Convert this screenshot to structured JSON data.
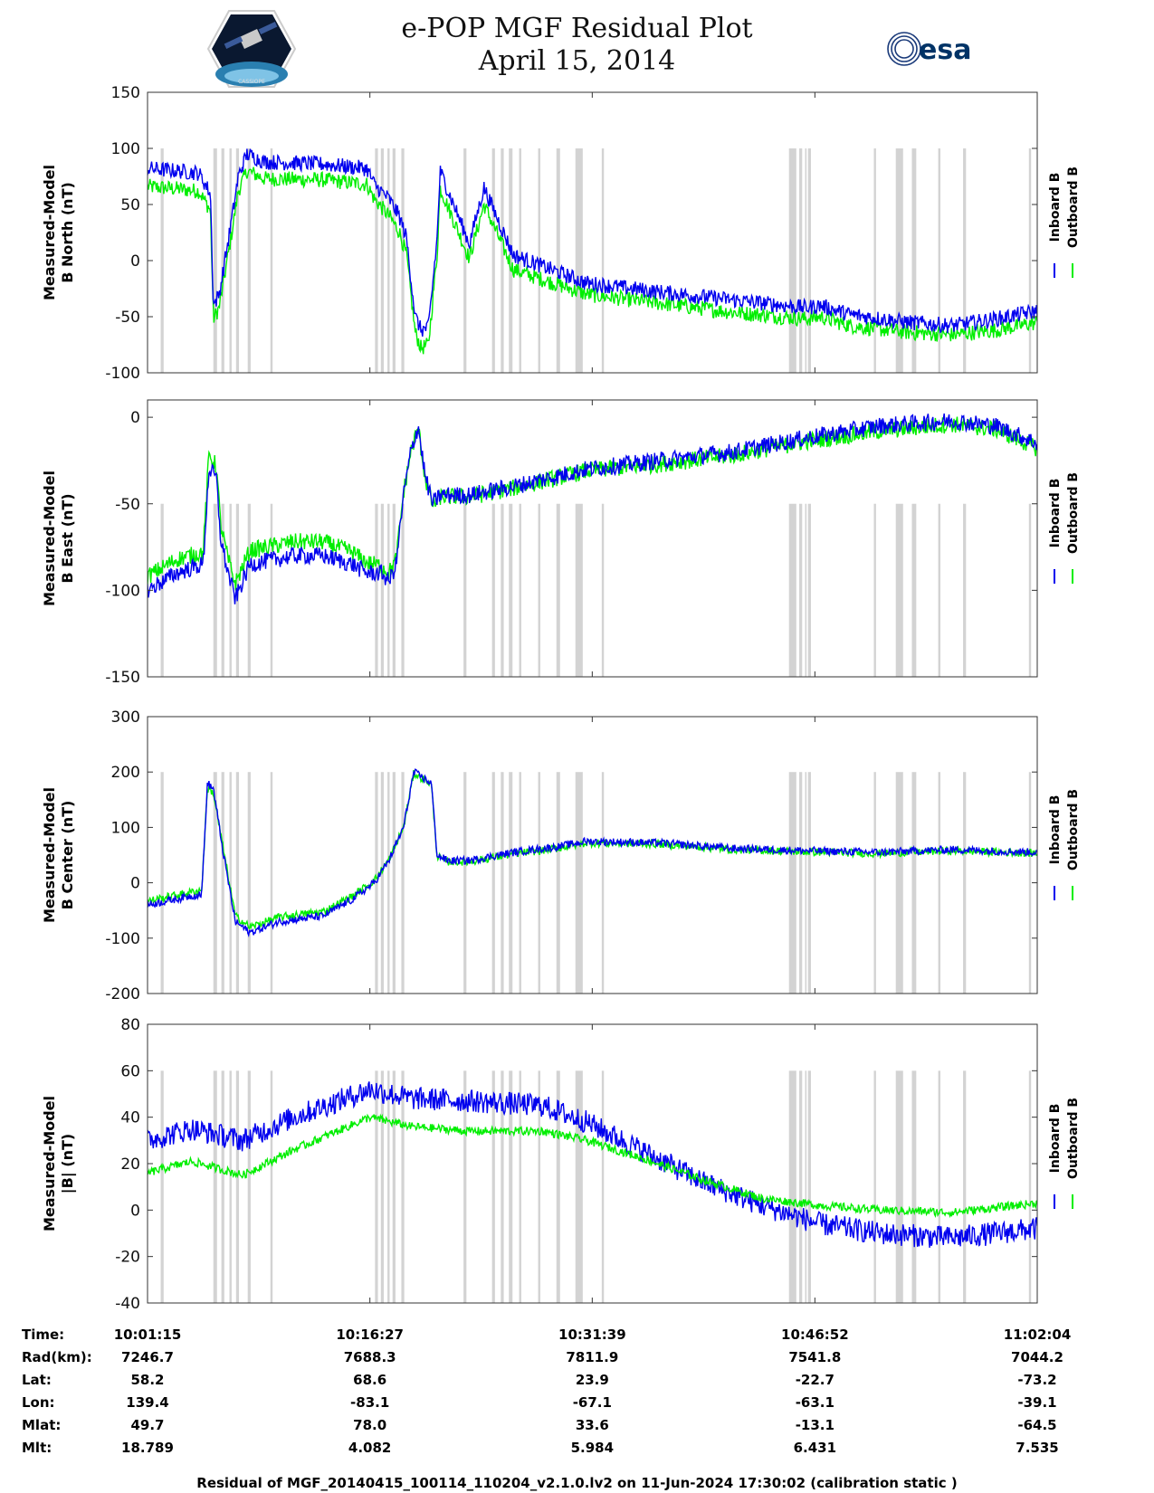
{
  "header": {
    "title_line1": "e-POP MGF Residual Plot",
    "title_line2": "April 15, 2014",
    "logo_left": "CASSIOPE",
    "logo_right": "esa"
  },
  "colors": {
    "inboard": "#0000ee",
    "outboard": "#00ee00",
    "gap_band": "#d3d3d3"
  },
  "chart_data": [
    {
      "type": "line",
      "ylabel_line1": "Measured-Model",
      "ylabel_line2": "B North (nT)",
      "ylim": [
        -100,
        150
      ],
      "yticks": [
        150,
        100,
        50,
        0,
        -50,
        -100
      ],
      "x_unit": "minutes after 10:01:15",
      "xlim": [
        0,
        60.82
      ],
      "legend": [
        "Inboard B",
        "Outboard B"
      ],
      "series": [
        {
          "name": "Inboard B",
          "noise": 7,
          "x": [
            0,
            2,
            3.5,
            4.3,
            4.5,
            4.9,
            5.8,
            6.2,
            6.8,
            8,
            12,
            15,
            20,
            23,
            15.5,
            16.5,
            17.2,
            17.7,
            18.3,
            18.7,
            19.2,
            19.8,
            22,
            25,
            30,
            35,
            40,
            45,
            46,
            48,
            52,
            55,
            58,
            60.82
          ],
          "y": [
            82,
            80,
            78,
            60,
            -40,
            -30,
            40,
            75,
            95,
            88,
            86,
            82,
            80,
            65,
            68,
            55,
            40,
            20,
            -50,
            -62,
            -60,
            20,
            15,
            5,
            -20,
            -28,
            -35,
            -42,
            -40,
            -48,
            -55,
            -58,
            -52,
            -45
          ]
        },
        {
          "name": "Outboard B",
          "noise": 7,
          "x": [
            0,
            2,
            3.5,
            4.3,
            4.5,
            4.9,
            5.8,
            6.2,
            6.8,
            8,
            12,
            15,
            20,
            23,
            15.5,
            16.5,
            17.2,
            17.7,
            18.3,
            18.7,
            19.2,
            19.8,
            22,
            25,
            30,
            35,
            40,
            45,
            46,
            48,
            52,
            55,
            58,
            60.82
          ],
          "y": [
            66,
            64,
            62,
            45,
            -52,
            -42,
            28,
            62,
            80,
            73,
            72,
            68,
            65,
            50,
            55,
            40,
            26,
            5,
            -64,
            -78,
            -75,
            6,
            2,
            -8,
            -30,
            -38,
            -46,
            -52,
            -50,
            -58,
            -64,
            -66,
            -62,
            -55
          ]
        }
      ]
    },
    {
      "type": "line",
      "ylabel_line1": "Measured-Model",
      "ylabel_line2": "B East (nT)",
      "ylim": [
        -150,
        10
      ],
      "yticks": [
        0,
        -50,
        -100,
        -150
      ],
      "x_unit": "minutes after 10:01:15",
      "xlim": [
        0,
        60.82
      ],
      "legend": [
        "Inboard B",
        "Outboard B"
      ],
      "series": [
        {
          "name": "Inboard B",
          "noise": 5,
          "x": [
            0,
            2,
            3.8,
            4.2,
            4.7,
            5,
            5.5,
            6,
            7,
            10,
            12,
            14,
            15,
            16,
            16.5,
            17,
            17.5,
            18,
            18.5,
            19,
            19.5,
            20,
            22,
            25,
            30,
            35,
            40,
            45,
            50,
            55,
            58,
            60.82
          ],
          "y": [
            -100,
            -90,
            -85,
            -30,
            -35,
            -70,
            -90,
            -105,
            -85,
            -80,
            -80,
            -85,
            -90,
            -90,
            -95,
            -85,
            -45,
            -20,
            -5,
            -35,
            -50,
            -45,
            -45,
            -40,
            -30,
            -25,
            -20,
            -12,
            -5,
            -2,
            -5,
            -15
          ]
        },
        {
          "name": "Outboard B",
          "noise": 5,
          "x": [
            0,
            2,
            3.8,
            4.2,
            4.7,
            5,
            5.5,
            6,
            7,
            10,
            12,
            14,
            15,
            16,
            16.5,
            17,
            17.5,
            18,
            18.5,
            19,
            19.5,
            20,
            22,
            25,
            30,
            35,
            40,
            45,
            50,
            55,
            58,
            60.82
          ],
          "y": [
            -92,
            -82,
            -78,
            -22,
            -28,
            -62,
            -82,
            -96,
            -77,
            -72,
            -72,
            -78,
            -84,
            -86,
            -90,
            -82,
            -44,
            -20,
            -6,
            -36,
            -51,
            -46,
            -46,
            -41,
            -31,
            -27,
            -22,
            -14,
            -8,
            -4,
            -7,
            -18
          ]
        }
      ]
    },
    {
      "type": "line",
      "ylabel_line1": "Measured-Model",
      "ylabel_line2": "B Center (nT)",
      "ylim": [
        -200,
        300
      ],
      "yticks": [
        300,
        200,
        100,
        0,
        -100,
        -200
      ],
      "x_unit": "minutes after 10:01:15",
      "xlim": [
        0,
        60.82
      ],
      "legend": [
        "Inboard B",
        "Outboard B"
      ],
      "series": [
        {
          "name": "Inboard B",
          "noise": 7,
          "x": [
            0,
            3.7,
            4.1,
            4.5,
            5.2,
            6,
            7,
            9,
            12,
            14,
            15.5,
            16.5,
            17.5,
            18.2,
            18.8,
            19.4,
            19.8,
            20.5,
            22,
            25,
            28,
            30,
            35,
            40,
            45,
            50,
            55,
            60.82
          ],
          "y": [
            -40,
            -20,
            180,
            170,
            50,
            -70,
            -90,
            -70,
            -60,
            -30,
            0,
            40,
            100,
            200,
            190,
            180,
            50,
            40,
            40,
            55,
            65,
            75,
            72,
            62,
            58,
            55,
            60,
            55
          ]
        },
        {
          "name": "Outboard B",
          "noise": 7,
          "x": [
            0,
            3.7,
            4.1,
            4.5,
            5.2,
            6,
            7,
            9,
            12,
            14,
            15.5,
            16.5,
            17.5,
            18.2,
            18.8,
            19.4,
            19.8,
            20.5,
            22,
            25,
            28,
            30,
            35,
            40,
            45,
            50,
            55,
            60.82
          ],
          "y": [
            -33,
            -13,
            172,
            162,
            58,
            -60,
            -80,
            -62,
            -52,
            -24,
            4,
            42,
            100,
            198,
            188,
            178,
            48,
            38,
            38,
            52,
            62,
            72,
            70,
            60,
            56,
            53,
            58,
            53
          ]
        }
      ]
    },
    {
      "type": "line",
      "ylabel_line1": "Measured-Model",
      "ylabel_line2": "|B| (nT)",
      "ylim": [
        -40,
        80
      ],
      "yticks": [
        80,
        60,
        40,
        20,
        0,
        -20,
        -40
      ],
      "x_unit": "minutes after 10:01:15",
      "xlim": [
        0,
        60.82
      ],
      "legend": [
        "Inboard B",
        "Outboard B"
      ],
      "series": [
        {
          "name": "Inboard B",
          "noise": 5,
          "x": [
            0,
            3,
            6.5,
            10,
            15.2,
            18,
            22,
            27,
            30,
            34,
            38,
            42,
            46,
            50,
            55,
            60.82
          ],
          "y": [
            30,
            35,
            30,
            40,
            52,
            48,
            47,
            45,
            38,
            25,
            12,
            2,
            -6,
            -10,
            -12,
            -8
          ]
        },
        {
          "name": "Outboard B",
          "noise": 1.8,
          "x": [
            0,
            3,
            6.5,
            10,
            15.2,
            18,
            22,
            27,
            30,
            34,
            38,
            42,
            46,
            50,
            55,
            60.82
          ],
          "y": [
            16,
            21,
            15,
            26,
            40,
            36,
            34,
            34,
            30,
            22,
            13,
            5,
            2,
            0,
            -1,
            3
          ]
        }
      ]
    }
  ],
  "gap_bands_minutes": [
    [
      0.9,
      1.1
    ],
    [
      4.5,
      4.75
    ],
    [
      5.05,
      5.25
    ],
    [
      5.6,
      5.75
    ],
    [
      6.05,
      6.25
    ],
    [
      6.85,
      7.05
    ],
    [
      8.4,
      8.55
    ],
    [
      15.55,
      15.75
    ],
    [
      15.95,
      16.15
    ],
    [
      16.4,
      16.55
    ],
    [
      16.75,
      16.95
    ],
    [
      17.35,
      17.55
    ],
    [
      21.6,
      21.8
    ],
    [
      23.55,
      23.75
    ],
    [
      24.15,
      24.35
    ],
    [
      24.7,
      24.95
    ],
    [
      25.4,
      25.55
    ],
    [
      26.7,
      26.85
    ],
    [
      27.95,
      28.2
    ],
    [
      29.25,
      29.75
    ],
    [
      31.05,
      31.2
    ],
    [
      43.85,
      44.35
    ],
    [
      44.55,
      44.75
    ],
    [
      44.95,
      45.05
    ],
    [
      45.15,
      45.35
    ],
    [
      49.65,
      49.8
    ],
    [
      51.15,
      51.65
    ],
    [
      52.25,
      52.55
    ],
    [
      54.05,
      54.2
    ],
    [
      55.75,
      55.95
    ],
    [
      60.25,
      60.4
    ]
  ],
  "time_axis": {
    "rows": [
      {
        "label": "Time:",
        "values": [
          "10:01:15",
          "10:16:27",
          "10:31:39",
          "10:46:52",
          "11:02:04"
        ]
      },
      {
        "label": "Rad(km):",
        "values": [
          "7246.7",
          "7688.3",
          "7811.9",
          "7541.8",
          "7044.2"
        ]
      },
      {
        "label": "Lat:",
        "values": [
          "58.2",
          "68.6",
          "23.9",
          "-22.7",
          "-73.2"
        ]
      },
      {
        "label": "Lon:",
        "values": [
          "139.4",
          "-83.1",
          "-67.1",
          "-63.1",
          "-39.1"
        ]
      },
      {
        "label": "Mlat:",
        "values": [
          "49.7",
          "78.0",
          "33.6",
          "-13.1",
          "-64.5"
        ]
      },
      {
        "label": "Mlt:",
        "values": [
          "18.789",
          "4.082",
          "5.984",
          "6.431",
          "7.535"
        ]
      }
    ]
  },
  "footer": "Residual of MGF_20140415_100114_110204_v2.1.0.lv2 on 11-Jun-2024 17:30:02 (calibration static )"
}
